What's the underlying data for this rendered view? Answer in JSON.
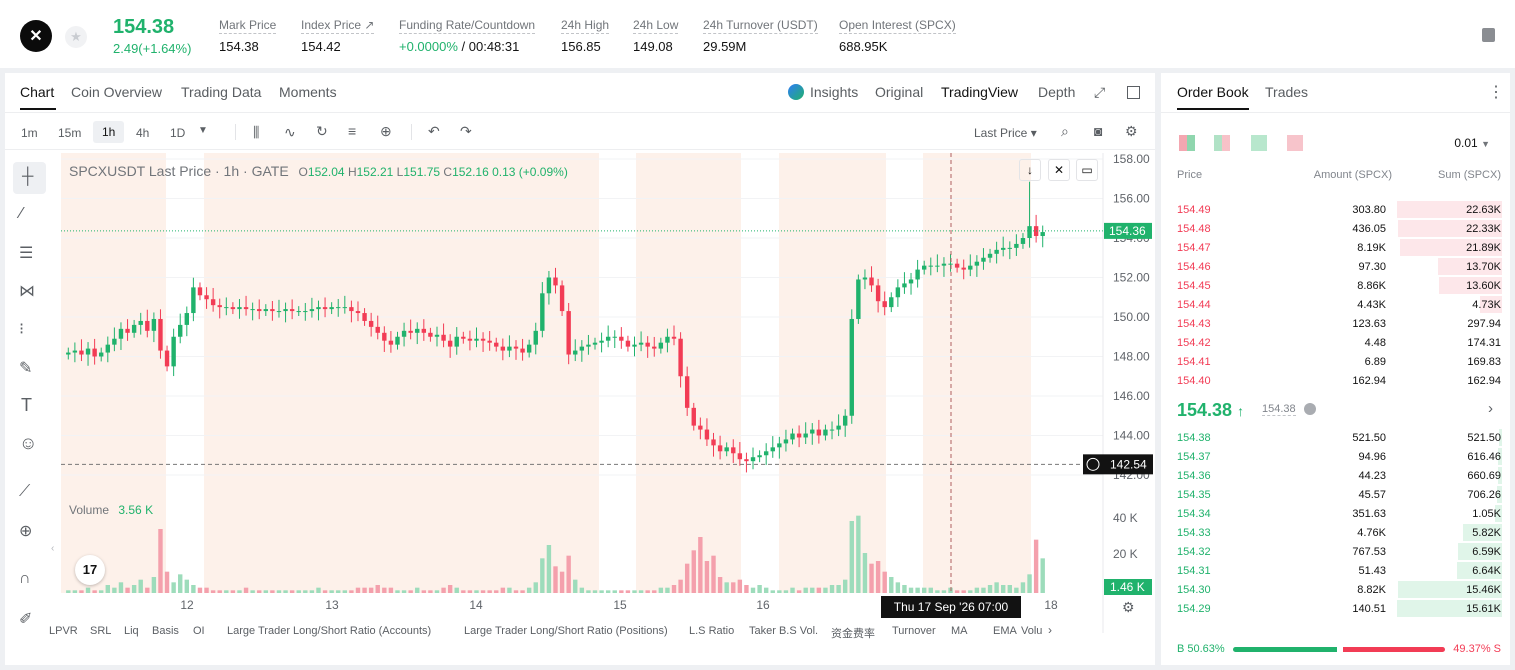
{
  "header": {
    "logo_glyph": "✕",
    "last_price": "154.38",
    "change": "2.49(+1.64%)",
    "stats": [
      {
        "label": "Mark Price",
        "value": "154.38"
      },
      {
        "label": "Index Price ↗",
        "value": "154.42"
      },
      {
        "label": "Funding Rate/Countdown",
        "value_green": "+0.0000%",
        "value": " / 00:48:31"
      },
      {
        "label": "24h High",
        "value": "156.85"
      },
      {
        "label": "24h Low",
        "value": "149.08"
      },
      {
        "label": "24h Turnover (USDT)",
        "value": "29.59M"
      },
      {
        "label": "Open Interest (SPCX)",
        "value": "688.95K"
      }
    ]
  },
  "chart_tabs": {
    "chart": "Chart",
    "coin_overview": "Coin Overview",
    "trading_data": "Trading Data",
    "moments": "Moments",
    "insights": "Insights",
    "original": "Original",
    "tradingview": "TradingView",
    "depth": "Depth"
  },
  "toolbar": {
    "intervals": [
      "1m",
      "15m",
      "1h",
      "4h",
      "1D"
    ],
    "selected_interval": "1h",
    "price_type": "Last Price ▾"
  },
  "legend": {
    "symbol": "SPCXUSDT Last Price · 1h · GATE",
    "o_label": "O",
    "o": "152.04",
    "h_label": "H",
    "h": "152.21",
    "l_label": "L",
    "l": "151.75",
    "c_label": "C",
    "c": "152.16",
    "chg": "0.13 (+0.09%)",
    "volume_label": "Volume",
    "volume_value": "3.56 K"
  },
  "chart_labels": {
    "last_price_tag": "154.36",
    "crosshair_price": "142.54",
    "vol_last_tag": "1.46 K",
    "crosshair_time": "Thu 17 Sep '26   07:00",
    "tv_logo": "17"
  },
  "chart_data": {
    "type": "candlestick",
    "price_ticks": [
      "158.00",
      "156.00",
      "154.00",
      "152.00",
      "150.00",
      "148.00",
      "146.00",
      "144.00",
      "142.00"
    ],
    "volume_ticks": [
      "40 K",
      "20 K"
    ],
    "x_ticks": [
      "12",
      "13",
      "14",
      "15",
      "16",
      "18"
    ],
    "ylim": [
      142,
      158
    ],
    "close": [
      148.2,
      148.3,
      148.1,
      148.4,
      148.0,
      148.2,
      148.6,
      148.9,
      149.4,
      149.2,
      149.6,
      149.8,
      149.3,
      149.9,
      148.3,
      147.5,
      149.0,
      149.6,
      150.2,
      151.5,
      151.1,
      150.9,
      150.6,
      150.5,
      150.5,
      150.4,
      150.5,
      150.4,
      150.4,
      150.3,
      150.4,
      150.3,
      150.3,
      150.4,
      150.3,
      150.3,
      150.3,
      150.4,
      150.5,
      150.4,
      150.5,
      150.5,
      150.5,
      150.3,
      150.2,
      149.8,
      149.5,
      149.2,
      148.8,
      148.6,
      149.0,
      149.3,
      149.2,
      149.4,
      149.2,
      149.0,
      149.1,
      148.8,
      148.5,
      149.0,
      148.9,
      148.8,
      148.9,
      148.8,
      148.7,
      148.5,
      148.3,
      148.5,
      148.4,
      148.2,
      148.6,
      149.3,
      151.2,
      152.0,
      151.6,
      150.3,
      148.1,
      148.3,
      148.5,
      148.6,
      148.7,
      148.8,
      149.0,
      149.0,
      148.8,
      148.5,
      148.6,
      148.7,
      148.5,
      148.4,
      148.7,
      149.0,
      148.9,
      147.0,
      145.4,
      144.5,
      144.3,
      143.8,
      143.5,
      143.2,
      143.4,
      143.1,
      142.8,
      142.7,
      142.9,
      143.0,
      143.2,
      143.4,
      143.6,
      143.8,
      144.1,
      143.9,
      144.1,
      144.3,
      144.0,
      144.3,
      144.3,
      144.5,
      145.0,
      149.9,
      151.9,
      152.0,
      151.6,
      150.8,
      150.5,
      151.0,
      151.5,
      151.7,
      151.9,
      152.4,
      152.6,
      152.6,
      152.6,
      152.7,
      152.7,
      152.5,
      152.4,
      152.6,
      152.8,
      153.0,
      153.2,
      153.4,
      153.5,
      153.5,
      153.7,
      154.0,
      154.6,
      154.1,
      154.3
    ],
    "open": [
      148.1,
      148.2,
      148.3,
      148.1,
      148.4,
      148.0,
      148.2,
      148.6,
      148.9,
      149.4,
      149.2,
      149.6,
      149.8,
      149.3,
      149.9,
      148.3,
      147.5,
      149.0,
      149.6,
      150.2,
      151.5,
      151.1,
      150.9,
      150.6,
      150.5,
      150.5,
      150.4,
      150.5,
      150.4,
      150.4,
      150.3,
      150.4,
      150.3,
      150.3,
      150.4,
      150.3,
      150.3,
      150.3,
      150.4,
      150.5,
      150.4,
      150.5,
      150.5,
      150.5,
      150.3,
      150.2,
      149.8,
      149.5,
      149.2,
      148.8,
      148.6,
      149.0,
      149.3,
      149.2,
      149.4,
      149.2,
      149.0,
      149.1,
      148.8,
      148.5,
      149.0,
      148.9,
      148.8,
      148.9,
      148.8,
      148.7,
      148.5,
      148.3,
      148.5,
      148.4,
      148.2,
      148.6,
      149.3,
      151.2,
      152.0,
      151.6,
      150.3,
      148.1,
      148.3,
      148.5,
      148.6,
      148.7,
      148.8,
      149.0,
      149.0,
      148.8,
      148.5,
      148.6,
      148.7,
      148.5,
      148.4,
      148.7,
      149.0,
      148.9,
      147.0,
      145.4,
      144.5,
      144.3,
      143.8,
      143.5,
      143.2,
      143.4,
      143.1,
      142.8,
      142.7,
      142.9,
      143.0,
      143.2,
      143.4,
      143.6,
      143.8,
      144.1,
      143.9,
      144.1,
      144.3,
      144.0,
      144.3,
      144.3,
      144.5,
      145.0,
      149.9,
      151.9,
      152.0,
      151.6,
      150.8,
      150.5,
      151.0,
      151.5,
      151.7,
      151.9,
      152.4,
      152.6,
      152.6,
      152.6,
      152.7,
      152.7,
      152.5,
      152.4,
      152.6,
      152.8,
      153.0,
      153.2,
      153.4,
      153.5,
      153.5,
      153.7,
      154.0,
      154.6,
      154.1
    ],
    "high_peak": 156.85,
    "volume_k": [
      1,
      1,
      1,
      2,
      1,
      1,
      3,
      2,
      4,
      2,
      3,
      5,
      2,
      6,
      24,
      8,
      4,
      7,
      5,
      3,
      2,
      2,
      1,
      1,
      1,
      1,
      1,
      2,
      1,
      1,
      1,
      1,
      1,
      1,
      1,
      1,
      1,
      1,
      2,
      1,
      1,
      1,
      1,
      1,
      2,
      2,
      2,
      3,
      2,
      2,
      1,
      1,
      1,
      2,
      1,
      1,
      1,
      2,
      3,
      2,
      1,
      1,
      1,
      1,
      1,
      1,
      2,
      2,
      1,
      1,
      2,
      4,
      13,
      18,
      10,
      8,
      14,
      5,
      2,
      1,
      1,
      1,
      1,
      1,
      1,
      1,
      1,
      1,
      1,
      1,
      2,
      2,
      3,
      5,
      11,
      16,
      21,
      12,
      14,
      6,
      4,
      4,
      5,
      3,
      2,
      3,
      2,
      1,
      1,
      1,
      2,
      1,
      2,
      2,
      2,
      2,
      3,
      3,
      5,
      27,
      29,
      15,
      11,
      12,
      8,
      6,
      4,
      3,
      2,
      2,
      2,
      2,
      1,
      1,
      2,
      1,
      1,
      1,
      2,
      2,
      3,
      4,
      3,
      3,
      2,
      4,
      7,
      20,
      13,
      8
    ]
  },
  "indicators": [
    "LPVR",
    "SRL",
    "Liq",
    "Basis",
    "OI",
    "Large Trader Long/Short Ratio (Accounts)",
    "Large Trader Long/Short Ratio (Positions)",
    "L.S Ratio",
    "Taker B.S Vol.",
    "资金费率",
    "Turnover",
    "MA",
    "EMA",
    "Volu"
  ],
  "order_book": {
    "tab_book": "Order Book",
    "tab_trades": "Trades",
    "precision": "0.01",
    "col_price": "Price",
    "col_amount": "Amount (SPCX)",
    "col_sum": "Sum (SPCX)",
    "asks": [
      {
        "price": "154.49",
        "amount": "303.80",
        "sum": "22.63K",
        "depth": 1.0
      },
      {
        "price": "154.48",
        "amount": "436.05",
        "sum": "22.33K",
        "depth": 0.99
      },
      {
        "price": "154.47",
        "amount": "8.19K",
        "sum": "21.89K",
        "depth": 0.97
      },
      {
        "price": "154.46",
        "amount": "97.30",
        "sum": "13.70K",
        "depth": 0.61
      },
      {
        "price": "154.45",
        "amount": "8.86K",
        "sum": "13.60K",
        "depth": 0.6
      },
      {
        "price": "154.44",
        "amount": "4.43K",
        "sum": "4.73K",
        "depth": 0.21
      },
      {
        "price": "154.43",
        "amount": "123.63",
        "sum": "297.94",
        "depth": 0.0
      },
      {
        "price": "154.42",
        "amount": "4.48",
        "sum": "174.31",
        "depth": 0.0
      },
      {
        "price": "154.41",
        "amount": "6.89",
        "sum": "169.83",
        "depth": 0.0
      },
      {
        "price": "154.40",
        "amount": "162.94",
        "sum": "162.94",
        "depth": 0.0
      }
    ],
    "mid_price": "154.38",
    "mid_arrow": "↑",
    "mark_price": "154.38",
    "bids": [
      {
        "price": "154.38",
        "amount": "521.50",
        "sum": "521.50",
        "depth": 0.03
      },
      {
        "price": "154.37",
        "amount": "94.96",
        "sum": "616.46",
        "depth": 0.04
      },
      {
        "price": "154.36",
        "amount": "44.23",
        "sum": "660.69",
        "depth": 0.04
      },
      {
        "price": "154.35",
        "amount": "45.57",
        "sum": "706.26",
        "depth": 0.05
      },
      {
        "price": "154.34",
        "amount": "351.63",
        "sum": "1.05K",
        "depth": 0.07
      },
      {
        "price": "154.33",
        "amount": "4.76K",
        "sum": "5.82K",
        "depth": 0.37
      },
      {
        "price": "154.32",
        "amount": "767.53",
        "sum": "6.59K",
        "depth": 0.42
      },
      {
        "price": "154.31",
        "amount": "51.43",
        "sum": "6.64K",
        "depth": 0.43
      },
      {
        "price": "154.30",
        "amount": "8.82K",
        "sum": "15.46K",
        "depth": 0.99
      },
      {
        "price": "154.29",
        "amount": "140.51",
        "sum": "15.61K",
        "depth": 1.0
      }
    ],
    "buy_ratio": "B 50.63%",
    "sell_ratio": "49.37% S",
    "buy_fraction": 0.5063
  },
  "colors": {
    "up": "#20b26c",
    "down": "#f23c55"
  }
}
